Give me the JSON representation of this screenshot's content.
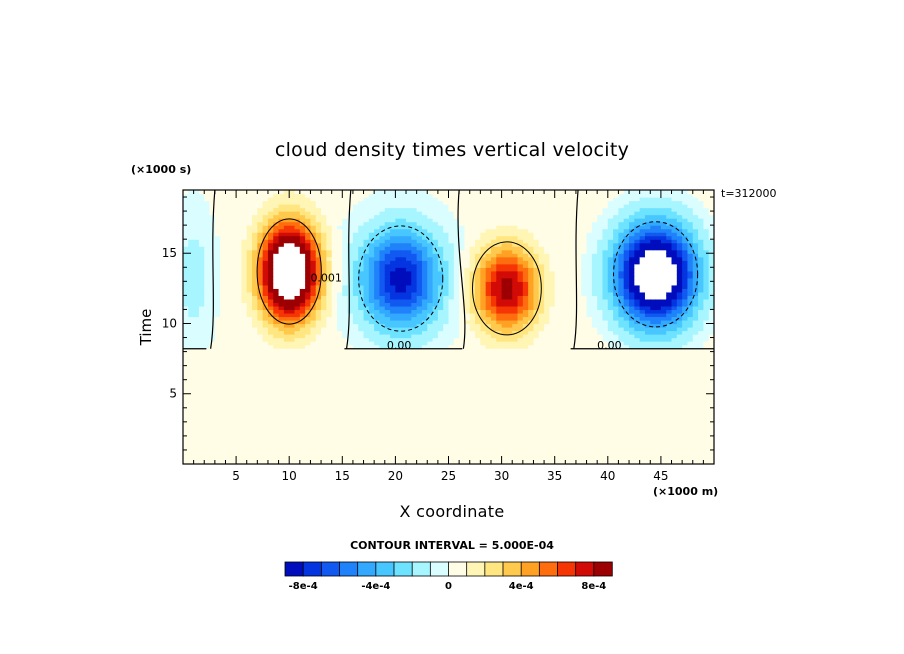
{
  "chart_data": {
    "type": "heatmap",
    "title": "cloud density times vertical velocity",
    "xlabel": "X coordinate",
    "ylabel": "Time",
    "x_unit_label": "(×1000 m)",
    "y_unit_label": "(×1000 s)",
    "time_label": "t=312000",
    "contour_interval_label": "CONTOUR INTERVAL = 5.000E-04",
    "xlim": [
      0,
      50
    ],
    "ylim": [
      0,
      19.5
    ],
    "x_ticks": [
      "5",
      "10",
      "15",
      "20",
      "25",
      "30",
      "35",
      "40",
      "45"
    ],
    "x_tick_values": [
      5,
      10,
      15,
      20,
      25,
      30,
      35,
      40,
      45
    ],
    "y_ticks": [
      "5",
      "10",
      "15"
    ],
    "y_tick_values": [
      5,
      10,
      15
    ],
    "background_value": 0,
    "clip_value_range": [
      -0.001,
      0.001
    ],
    "features": [
      {
        "sign": "positive",
        "center_x": 10,
        "center_y": 13.7,
        "peak": 0.0014,
        "radius_x": 4.2,
        "radius_y": 5.2,
        "white_core": true
      },
      {
        "sign": "negative",
        "center_x": 20.5,
        "center_y": 13.2,
        "peak": -0.00085,
        "radius_x": 5.5,
        "radius_y": 5.2,
        "white_core": false
      },
      {
        "sign": "positive",
        "center_x": 30.5,
        "center_y": 12.5,
        "peak": 0.00085,
        "radius_x": 4.5,
        "radius_y": 4.6,
        "white_core": false
      },
      {
        "sign": "negative",
        "center_x": 44.5,
        "center_y": 13.5,
        "peak": -0.0013,
        "radius_x": 5.5,
        "radius_y": 5.2,
        "white_core": true
      },
      {
        "sign": "negative",
        "center_x": 1.0,
        "center_y": 13.3,
        "peak": -0.0002,
        "radius_x": 2.0,
        "radius_y": 5.0,
        "white_core": false
      }
    ],
    "contour_labels": [
      {
        "text": "0.00",
        "x": 19.2,
        "y": 8.2
      },
      {
        "text": "0.00",
        "x": 39.0,
        "y": 8.2
      },
      {
        "text": "0.001",
        "x": 12.0,
        "y": 13.0
      }
    ],
    "colorbar": {
      "colors": [
        "#000dbd",
        "#0535e0",
        "#1159f1",
        "#1f82fa",
        "#32a8fe",
        "#48c6ff",
        "#6ee3ff",
        "#a6f5ff",
        "#dafdff",
        "#fffde6",
        "#fff5b5",
        "#ffe680",
        "#ffc94e",
        "#ffa224",
        "#ff6e0e",
        "#f63505",
        "#d20b06",
        "#9c0003"
      ],
      "tick_labels": [
        "-8e-4",
        "-4e-4",
        "0",
        "4e-4",
        "8e-4"
      ],
      "tick_values": [
        -0.0008,
        -0.0004,
        0,
        0.0004,
        0.0008
      ],
      "range": [
        -0.0009,
        0.0009
      ]
    }
  }
}
